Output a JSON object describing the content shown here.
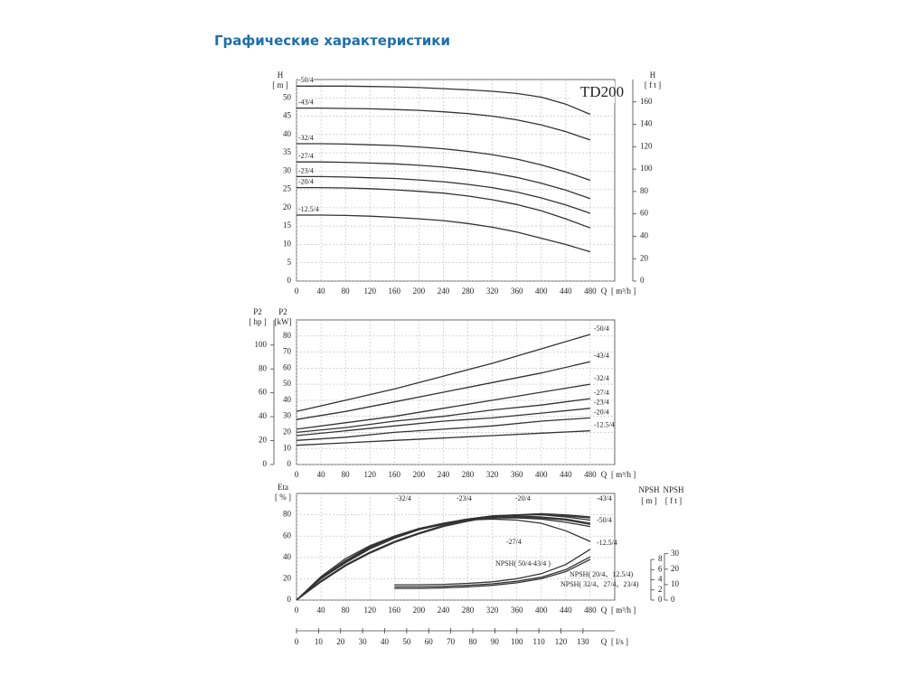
{
  "header": {
    "title": "Графические характеристики"
  },
  "chart_data": [
    {
      "type": "line",
      "title": "TD200",
      "xlabel": "Q",
      "xunit": "[ m³/h ]",
      "ylabel": "H",
      "yunit": "[ m ]",
      "y2label": "H",
      "y2unit": "[ f t ]",
      "x": [
        0,
        40,
        80,
        120,
        160,
        200,
        240,
        280,
        320,
        360,
        400,
        440,
        480
      ],
      "xlim": [
        0,
        520
      ],
      "xticks": [
        0,
        40,
        80,
        120,
        160,
        200,
        240,
        280,
        320,
        360,
        400,
        440,
        480
      ],
      "ylim": [
        0,
        55
      ],
      "yticks": [
        0,
        5,
        10,
        15,
        20,
        25,
        30,
        35,
        40,
        45,
        50
      ],
      "y2lim": [
        0,
        180
      ],
      "y2ticks": [
        0,
        20,
        40,
        60,
        80,
        100,
        120,
        140,
        160
      ],
      "grid": true,
      "series": [
        {
          "name": "-50/4",
          "color": "#333333",
          "values": [
            53.2,
            53.2,
            53.2,
            53.1,
            53.0,
            52.8,
            52.5,
            52.2,
            51.8,
            51.2,
            50.2,
            48.3,
            45.5
          ]
        },
        {
          "name": "-43/4",
          "color": "#333333",
          "values": [
            47.2,
            47.2,
            47.1,
            47.0,
            46.8,
            46.6,
            46.2,
            45.7,
            45.0,
            44.0,
            42.6,
            40.8,
            38.5
          ]
        },
        {
          "name": "-32/4",
          "color": "#333333",
          "values": [
            37.5,
            37.5,
            37.4,
            37.2,
            37.0,
            36.6,
            36.1,
            35.4,
            34.5,
            33.3,
            31.7,
            29.8,
            27.5
          ]
        },
        {
          "name": "-27/4",
          "color": "#333333",
          "values": [
            32.5,
            32.5,
            32.4,
            32.2,
            32.0,
            31.6,
            31.1,
            30.4,
            29.5,
            28.3,
            26.7,
            24.8,
            22.5
          ]
        },
        {
          "name": "-23/4",
          "color": "#333333",
          "values": [
            28.5,
            28.5,
            28.4,
            28.2,
            28.0,
            27.6,
            27.1,
            26.4,
            25.5,
            24.3,
            22.7,
            20.8,
            18.5
          ]
        },
        {
          "name": "-20/4",
          "color": "#333333",
          "values": [
            25.5,
            25.5,
            25.4,
            25.2,
            24.9,
            24.5,
            24.0,
            23.2,
            22.2,
            20.9,
            19.2,
            17.0,
            14.5
          ]
        },
        {
          "name": "-12.5/4",
          "color": "#333333",
          "values": [
            18.0,
            18.0,
            17.9,
            17.7,
            17.4,
            17.0,
            16.5,
            15.7,
            14.7,
            13.4,
            11.7,
            10.0,
            8.0
          ]
        }
      ]
    },
    {
      "type": "line",
      "xlabel": "Q",
      "xunit": "[ m³/h ]",
      "ylabel": "P2",
      "yunit": "[kW]",
      "y2label": "P2",
      "y2unit": "[ hp ]",
      "x": [
        0,
        80,
        160,
        240,
        320,
        400,
        480
      ],
      "xlim": [
        0,
        520
      ],
      "xticks": [
        0,
        40,
        80,
        120,
        160,
        200,
        240,
        280,
        320,
        360,
        400,
        440,
        480
      ],
      "ylim": [
        0,
        90
      ],
      "yticks": [
        0,
        10,
        20,
        30,
        40,
        50,
        60,
        70,
        80
      ],
      "y2lim": [
        0,
        121
      ],
      "y2ticks": [
        0,
        20,
        40,
        60,
        80,
        100
      ],
      "grid": true,
      "series": [
        {
          "name": "-50/4",
          "color": "#333333",
          "values": [
            33,
            40,
            47,
            55,
            63,
            72,
            81
          ]
        },
        {
          "name": "-43/4",
          "color": "#333333",
          "values": [
            28,
            33,
            39,
            45,
            51,
            57,
            64
          ]
        },
        {
          "name": "-32/4",
          "color": "#333333",
          "values": [
            22,
            26,
            30,
            35,
            40,
            45,
            50
          ]
        },
        {
          "name": "-27/4",
          "color": "#333333",
          "values": [
            20,
            23,
            27,
            30,
            34,
            37,
            41
          ]
        },
        {
          "name": "-23/4",
          "color": "#333333",
          "values": [
            18,
            21,
            24,
            27,
            29,
            32,
            35
          ]
        },
        {
          "name": "-20/4",
          "color": "#333333",
          "values": [
            15,
            17,
            20,
            22,
            24,
            27,
            29
          ]
        },
        {
          "name": "-12.5/4",
          "color": "#333333",
          "values": [
            12,
            13.5,
            15,
            16.5,
            18,
            19.5,
            21
          ]
        }
      ]
    },
    {
      "type": "line",
      "xlabel": "Q",
      "xunit": "[ m³/h ]",
      "ylabel": "Eta",
      "yunit": "[ % ]",
      "y2label": "NPSH",
      "y2unit": "[ m ]",
      "y3label": "NPSH",
      "y3unit": "[ f t ]",
      "x2label": "Q",
      "x2unit": "[ l/s ]",
      "x": [
        0,
        40,
        80,
        120,
        160,
        200,
        240,
        280,
        320,
        360,
        400,
        440,
        480
      ],
      "xlim": [
        0,
        520
      ],
      "xticks": [
        0,
        40,
        80,
        120,
        160,
        200,
        240,
        280,
        320,
        360,
        400,
        440,
        480
      ],
      "x2lim": [
        0,
        144.4
      ],
      "x2ticks": [
        0,
        10,
        20,
        30,
        40,
        50,
        60,
        70,
        80,
        90,
        100,
        110,
        120,
        130
      ],
      "ylim": [
        0,
        100
      ],
      "yticks": [
        0,
        20,
        40,
        60,
        80
      ],
      "y2lim": [
        0,
        21
      ],
      "y2ticks": [
        0,
        2,
        4,
        6,
        8
      ],
      "y3lim": [
        0,
        69
      ],
      "y3ticks": [
        0,
        10,
        20,
        30
      ],
      "grid": true,
      "series": [
        {
          "name": "-32/4",
          "color": "#333333",
          "values": [
            0,
            22,
            39,
            51,
            60,
            67,
            72,
            75,
            77,
            77,
            76,
            73,
            69
          ]
        },
        {
          "name": "-23/4",
          "color": "#333333",
          "values": [
            0,
            20,
            36,
            49,
            59,
            67,
            72,
            76,
            78,
            79,
            78,
            76,
            72
          ]
        },
        {
          "name": "-20/4",
          "color": "#333333",
          "values": [
            0,
            20,
            35,
            48,
            58,
            66,
            72,
            76,
            79,
            80,
            80,
            78,
            75
          ]
        },
        {
          "name": "-43/4",
          "color": "#333333",
          "values": [
            0,
            18,
            33,
            45,
            55,
            63,
            70,
            75,
            78,
            80,
            80,
            79,
            77
          ]
        },
        {
          "name": "-50/4",
          "color": "#333333",
          "values": [
            0,
            17,
            32,
            44,
            54,
            62,
            69,
            74,
            78,
            80,
            81,
            80,
            78
          ]
        },
        {
          "name": "-12.5/4",
          "color": "#333333",
          "values": [
            0,
            21,
            37,
            50,
            60,
            67,
            72,
            75,
            76,
            75,
            72,
            65,
            55
          ]
        },
        {
          "name": "-27/4",
          "color": "#333333",
          "values": [
            0,
            21,
            37,
            50,
            59,
            66,
            71,
            75,
            77,
            78,
            77,
            75,
            71
          ]
        },
        {
          "name": "NPSH( 50/4-43/4 )",
          "color": "#333333",
          "axis": "y2",
          "x": [
            160,
            200,
            240,
            280,
            320,
            360,
            400,
            440,
            480
          ],
          "values": [
            3.0,
            3.0,
            3.1,
            3.3,
            3.6,
            4.2,
            5.2,
            7.0,
            10.0
          ]
        },
        {
          "name": "NPSH( 20/4、12.5/4)",
          "color": "#333333",
          "axis": "y2",
          "x": [
            160,
            200,
            240,
            280,
            320,
            360,
            400,
            440,
            480
          ],
          "values": [
            2.6,
            2.6,
            2.7,
            2.9,
            3.2,
            3.7,
            4.5,
            6.0,
            8.5
          ]
        },
        {
          "name": "NPSH( 32/4、27/4、23/4)",
          "color": "#333333",
          "axis": "y2",
          "x": [
            160,
            200,
            240,
            280,
            320,
            360,
            400,
            440,
            480
          ],
          "values": [
            2.3,
            2.3,
            2.4,
            2.6,
            2.9,
            3.4,
            4.2,
            5.6,
            8.0
          ]
        }
      ]
    }
  ]
}
